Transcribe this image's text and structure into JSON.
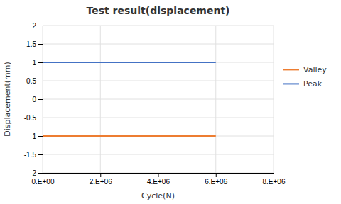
{
  "chart_data": {
    "type": "line",
    "title": "Test result(displacement)",
    "xlabel": "Cycle(N)",
    "ylabel": "Displacement(mm)",
    "x": [
      0,
      6000000
    ],
    "series": [
      {
        "name": "Valley",
        "color": "#ED7D31",
        "values": [
          -1.0,
          -1.0
        ]
      },
      {
        "name": "Peak",
        "color": "#4472C4",
        "values": [
          1.0,
          1.0
        ]
      }
    ],
    "xlim": [
      0,
      8000000
    ],
    "ylim": [
      -2,
      2
    ],
    "xticks": [
      {
        "value": 0,
        "label": "0.E+00"
      },
      {
        "value": 2000000,
        "label": "2.E+06"
      },
      {
        "value": 4000000,
        "label": "4.E+06"
      },
      {
        "value": 6000000,
        "label": "6.E+06"
      },
      {
        "value": 8000000,
        "label": "8.E+06"
      }
    ],
    "yticks": [
      -2,
      -1.5,
      -1,
      -0.5,
      0,
      0.5,
      1,
      1.5,
      2
    ],
    "grid": true,
    "legend": "right"
  }
}
